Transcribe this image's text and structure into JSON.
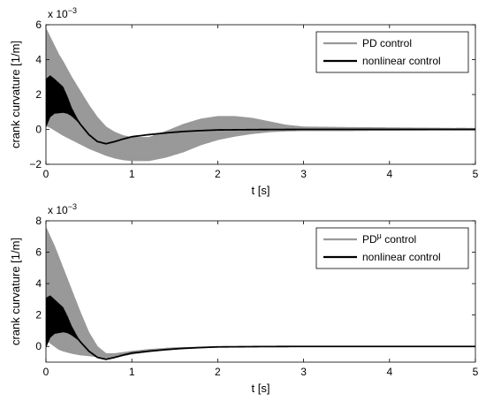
{
  "chart_data": [
    {
      "type": "line",
      "xlabel": "t  [s]",
      "ylabel": "crank curvature  [1/m]",
      "exponent_label": "x 10",
      "exponent_power": "−3",
      "xlim": [
        0,
        5
      ],
      "ylim": [
        -2,
        6
      ],
      "x_ticks": [
        0,
        1,
        2,
        3,
        4,
        5
      ],
      "y_ticks": [
        -2,
        0,
        2,
        4,
        6
      ],
      "y_tick_labels": [
        "−2",
        "0",
        "2",
        "4",
        "6"
      ],
      "grid": false,
      "legend_position": "top-right",
      "series": [
        {
          "name": "PD control",
          "color": "#999999",
          "style": "oscillating-envelope",
          "x": [
            0,
            0.05,
            0.1,
            0.15,
            0.2,
            0.3,
            0.4,
            0.5,
            0.6,
            0.7,
            0.8,
            0.9,
            1.0,
            1.2,
            1.4,
            1.6,
            1.8,
            2.0,
            2.2,
            2.4,
            2.6,
            2.8,
            3.0,
            3.5,
            4.0,
            4.5,
            5.0
          ],
          "upper": [
            5.8,
            5.3,
            4.8,
            4.3,
            3.9,
            3.0,
            2.2,
            1.4,
            0.7,
            0.15,
            -0.15,
            -0.35,
            -0.45,
            -0.45,
            -0.1,
            0.3,
            0.6,
            0.75,
            0.75,
            0.65,
            0.45,
            0.25,
            0.15,
            0.12,
            0.1,
            0.08,
            0.06
          ],
          "lower": [
            0.2,
            0.1,
            -0.05,
            -0.2,
            -0.35,
            -0.6,
            -0.85,
            -1.1,
            -1.3,
            -1.5,
            -1.65,
            -1.75,
            -1.8,
            -1.8,
            -1.6,
            -1.3,
            -0.9,
            -0.6,
            -0.4,
            -0.25,
            -0.15,
            -0.1,
            -0.08,
            -0.08,
            -0.06,
            -0.05,
            -0.04
          ]
        },
        {
          "name": "nonlinear control",
          "color": "#000000",
          "style": "line-with-early-oscillation",
          "x": [
            0,
            0.05,
            0.1,
            0.15,
            0.2,
            0.25,
            0.3,
            0.4,
            0.5,
            0.6,
            0.7,
            0.8,
            0.9,
            1.0,
            1.2,
            1.4,
            1.6,
            1.8,
            2.0,
            2.5,
            3.0,
            4.0,
            5.0
          ],
          "y": [
            1.5,
            1.9,
            1.9,
            1.8,
            1.7,
            1.4,
            1.0,
            0.3,
            -0.3,
            -0.7,
            -0.82,
            -0.7,
            -0.55,
            -0.42,
            -0.3,
            -0.2,
            -0.12,
            -0.07,
            -0.03,
            -0.01,
            0.0,
            0.0,
            0.0
          ],
          "osc_x": [
            0,
            0.1,
            0.2,
            0.3,
            0.4
          ],
          "osc_amp": [
            1.4,
            1.0,
            0.75,
            0.25,
            0.0
          ]
        }
      ]
    },
    {
      "type": "line",
      "xlabel": "t  [s]",
      "ylabel": "crank curvature  [1/m]",
      "exponent_label": "x 10",
      "exponent_power": "−3",
      "xlim": [
        0,
        5
      ],
      "ylim": [
        -1,
        8
      ],
      "x_ticks": [
        0,
        1,
        2,
        3,
        4,
        5
      ],
      "y_ticks": [
        0,
        2,
        4,
        6,
        8
      ],
      "y_tick_labels": [
        "0",
        "2",
        "4",
        "6",
        "8"
      ],
      "grid": false,
      "legend_position": "top-right",
      "series": [
        {
          "name": "PD",
          "name_superscript": "μ",
          "name_suffix": " control",
          "color": "#999999",
          "style": "oscillating-envelope",
          "x": [
            0,
            0.05,
            0.1,
            0.15,
            0.2,
            0.3,
            0.4,
            0.5,
            0.6,
            0.7,
            0.8,
            1.0,
            1.2,
            1.5,
            2.0,
            2.5,
            3.0,
            5.0
          ],
          "upper": [
            7.6,
            7.0,
            6.4,
            5.7,
            5.0,
            3.6,
            2.2,
            0.9,
            0.0,
            -0.45,
            -0.45,
            -0.3,
            -0.18,
            -0.08,
            -0.02,
            0.0,
            0.0,
            0.0
          ],
          "lower": [
            0.5,
            0.2,
            0.0,
            -0.2,
            -0.3,
            -0.45,
            -0.55,
            -0.6,
            -0.68,
            -0.75,
            -0.7,
            -0.5,
            -0.35,
            -0.18,
            -0.05,
            0.0,
            0.0,
            0.0
          ]
        },
        {
          "name": "nonlinear control",
          "color": "#000000",
          "style": "line-with-early-oscillation",
          "x": [
            0,
            0.05,
            0.1,
            0.15,
            0.2,
            0.25,
            0.3,
            0.4,
            0.5,
            0.6,
            0.7,
            0.8,
            0.9,
            1.0,
            1.2,
            1.4,
            1.6,
            1.8,
            2.0,
            2.5,
            3.0,
            4.0,
            5.0
          ],
          "y": [
            1.5,
            1.9,
            1.9,
            1.8,
            1.7,
            1.4,
            1.0,
            0.3,
            -0.3,
            -0.7,
            -0.82,
            -0.7,
            -0.55,
            -0.42,
            -0.3,
            -0.2,
            -0.12,
            -0.07,
            -0.03,
            -0.01,
            0.0,
            0.0,
            0.0
          ],
          "osc_x": [
            0,
            0.1,
            0.2,
            0.3,
            0.4
          ],
          "osc_amp": [
            1.6,
            1.1,
            0.8,
            0.3,
            0.0
          ]
        }
      ]
    }
  ]
}
